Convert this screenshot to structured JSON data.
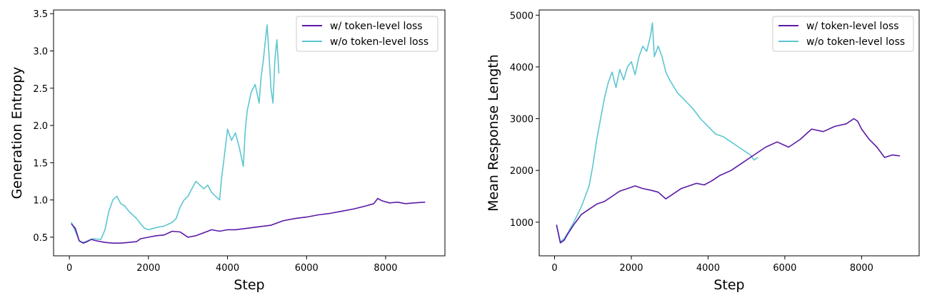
{
  "chart_data": [
    {
      "type": "line",
      "title": "",
      "xlabel": "Step",
      "ylabel": "Generation Entropy",
      "xlim": [
        -400,
        9500
      ],
      "ylim": [
        0.25,
        3.55
      ],
      "xticks": [
        0,
        2000,
        4000,
        6000,
        8000
      ],
      "yticks": [
        0.5,
        1.0,
        1.5,
        2.0,
        2.5,
        3.0,
        3.5
      ],
      "ytick_labels": [
        "0.5",
        "1.0",
        "1.5",
        "2.0",
        "2.5",
        "3.0",
        "3.5"
      ],
      "grid": false,
      "legend_position": "top-right",
      "series": [
        {
          "name": "w/ token-level loss",
          "color": "#5b1aa6",
          "x": [
            50,
            150,
            250,
            350,
            450,
            550,
            700,
            900,
            1100,
            1300,
            1500,
            1700,
            1800,
            2000,
            2200,
            2400,
            2600,
            2800,
            3000,
            3200,
            3400,
            3600,
            3800,
            4000,
            4200,
            4500,
            4800,
            5100,
            5400,
            5700,
            6000,
            6300,
            6600,
            6900,
            7200,
            7500,
            7700,
            7800,
            7900,
            8100,
            8300,
            8500,
            8700,
            9000
          ],
          "y": [
            0.68,
            0.62,
            0.45,
            0.42,
            0.44,
            0.47,
            0.45,
            0.43,
            0.42,
            0.42,
            0.43,
            0.44,
            0.48,
            0.5,
            0.52,
            0.53,
            0.58,
            0.57,
            0.5,
            0.52,
            0.56,
            0.6,
            0.58,
            0.6,
            0.6,
            0.62,
            0.64,
            0.66,
            0.72,
            0.75,
            0.77,
            0.8,
            0.82,
            0.85,
            0.88,
            0.92,
            0.95,
            1.02,
            0.99,
            0.96,
            0.97,
            0.95,
            0.96,
            0.97
          ]
        },
        {
          "name": "w/o token-level loss",
          "color": "#5cc6d0",
          "x": [
            50,
            150,
            250,
            350,
            450,
            600,
            800,
            900,
            1000,
            1100,
            1200,
            1300,
            1400,
            1500,
            1600,
            1700,
            1800,
            1900,
            2000,
            2200,
            2400,
            2600,
            2700,
            2800,
            2900,
            3000,
            3100,
            3200,
            3300,
            3400,
            3500,
            3600,
            3700,
            3800,
            3850,
            3900,
            4000,
            4100,
            4200,
            4300,
            4400,
            4450,
            4500,
            4600,
            4700,
            4800,
            4850,
            4900,
            5000,
            5050,
            5100,
            5150,
            5200,
            5250,
            5300
          ],
          "y": [
            0.7,
            0.58,
            0.45,
            0.43,
            0.45,
            0.48,
            0.47,
            0.6,
            0.85,
            1.0,
            1.05,
            0.95,
            0.92,
            0.85,
            0.8,
            0.75,
            0.68,
            0.62,
            0.6,
            0.63,
            0.65,
            0.7,
            0.75,
            0.9,
            1.0,
            1.05,
            1.15,
            1.25,
            1.2,
            1.15,
            1.2,
            1.1,
            1.05,
            1.0,
            1.3,
            1.5,
            1.95,
            1.8,
            1.9,
            1.7,
            1.45,
            1.95,
            2.2,
            2.45,
            2.55,
            2.3,
            2.65,
            2.85,
            3.35,
            2.95,
            2.5,
            2.3,
            2.9,
            3.15,
            2.7
          ]
        }
      ]
    },
    {
      "type": "line",
      "title": "",
      "xlabel": "Step",
      "ylabel": "Mean Response Length",
      "xlim": [
        -400,
        9500
      ],
      "ylim": [
        350,
        5100
      ],
      "xticks": [
        0,
        2000,
        4000,
        6000,
        8000
      ],
      "yticks": [
        1000,
        2000,
        3000,
        4000,
        5000
      ],
      "ytick_labels": [
        "1000",
        "2000",
        "3000",
        "4000",
        "5000"
      ],
      "grid": false,
      "legend_position": "top-right",
      "series": [
        {
          "name": "w/ token-level loss",
          "color": "#5b1aa6",
          "x": [
            50,
            150,
            250,
            350,
            500,
            700,
            900,
            1100,
            1300,
            1500,
            1700,
            1900,
            2100,
            2300,
            2500,
            2700,
            2900,
            3100,
            3300,
            3500,
            3700,
            3900,
            4100,
            4300,
            4600,
            4900,
            5200,
            5500,
            5800,
            6100,
            6400,
            6700,
            7000,
            7300,
            7600,
            7800,
            7900,
            8000,
            8200,
            8400,
            8600,
            8800,
            9000
          ],
          "y": [
            950,
            600,
            650,
            780,
            950,
            1150,
            1250,
            1350,
            1400,
            1500,
            1600,
            1650,
            1700,
            1650,
            1620,
            1580,
            1450,
            1550,
            1650,
            1700,
            1750,
            1720,
            1800,
            1900,
            2000,
            2150,
            2300,
            2450,
            2550,
            2450,
            2600,
            2800,
            2750,
            2850,
            2900,
            3000,
            2950,
            2800,
            2600,
            2450,
            2250,
            2300,
            2280
          ]
        },
        {
          "name": "w/o token-level loss",
          "color": "#5cc6d0",
          "x": [
            50,
            150,
            250,
            350,
            500,
            700,
            900,
            1000,
            1100,
            1200,
            1300,
            1400,
            1500,
            1600,
            1700,
            1800,
            1900,
            2000,
            2100,
            2200,
            2300,
            2400,
            2500,
            2550,
            2600,
            2700,
            2800,
            2900,
            3000,
            3200,
            3400,
            3600,
            3800,
            4000,
            4200,
            4400,
            4600,
            4800,
            5000,
            5100,
            5200,
            5300
          ],
          "y": [
            950,
            620,
            680,
            800,
            1000,
            1300,
            1700,
            2100,
            2600,
            3000,
            3400,
            3700,
            3900,
            3600,
            3950,
            3750,
            4000,
            4100,
            3850,
            4200,
            4400,
            4300,
            4600,
            4850,
            4200,
            4400,
            4200,
            3900,
            3750,
            3500,
            3350,
            3200,
            3000,
            2850,
            2700,
            2650,
            2550,
            2450,
            2350,
            2300,
            2200,
            2250
          ]
        }
      ]
    }
  ]
}
